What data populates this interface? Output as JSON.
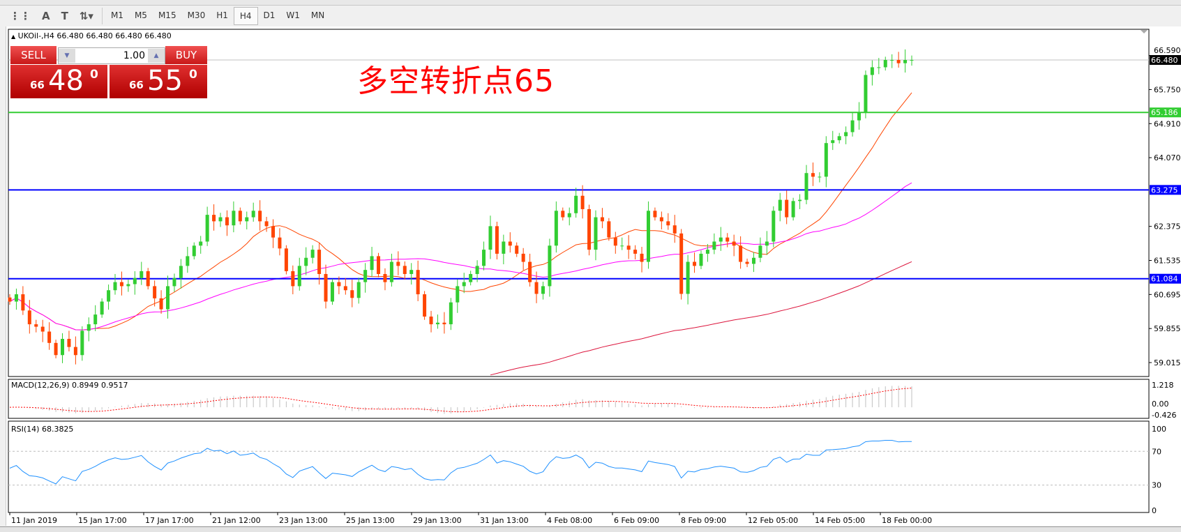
{
  "toolbar": {
    "tools": [
      {
        "name": "fibonacci-fan-icon",
        "glyph": "⋮⋮"
      },
      {
        "name": "text-icon",
        "glyph": "A"
      },
      {
        "name": "text-label-icon",
        "glyph": "T"
      },
      {
        "name": "arrows-icon",
        "glyph": "⇅▾"
      }
    ],
    "timeframes": [
      "M1",
      "M5",
      "M15",
      "M30",
      "H1",
      "H4",
      "D1",
      "W1",
      "MN"
    ],
    "selected_timeframe": "H4"
  },
  "header": {
    "symbol": "UKOil-,H4",
    "ohlc": "66.480 66.480 66.480 66.480"
  },
  "trade_panel": {
    "sell_label": "SELL",
    "buy_label": "BUY",
    "lot": "1.00",
    "sell_prefix": "66",
    "sell_main": "48",
    "sell_sup": "0",
    "buy_prefix": "66",
    "buy_main": "55",
    "buy_sup": "0"
  },
  "annotation": "多空转折点65",
  "colors": {
    "bull": "#32cd32",
    "bear": "#ff4500",
    "ma_fast": "#ff4500",
    "ma_mid": "#ff00ff",
    "ma_long": "#dc143c",
    "support": "#0000ff",
    "pivot": "#32cd32",
    "rsi": "#1e90ff",
    "macd_signal": "#ff0000",
    "macd_hist": "#c0c0c0"
  },
  "chart_data": {
    "type": "candlestick",
    "symbol": "UKOil-",
    "timeframe": "H4",
    "ylim": [
      58.8,
      66.6
    ],
    "y_ticks": [
      "66.590",
      "65.750",
      "64.910",
      "64.070",
      "62.375",
      "61.535",
      "60.695",
      "59.855",
      "59.015"
    ],
    "y_tick_values": [
      66.59,
      65.75,
      64.91,
      64.07,
      62.375,
      61.535,
      60.695,
      59.855,
      59.015
    ],
    "x_tick_labels": [
      "11 Jan 2019",
      "15 Jan 17:00",
      "17 Jan 17:00",
      "21 Jan 12:00",
      "23 Jan 13:00",
      "25 Jan 13:00",
      "29 Jan 13:00",
      "31 Jan 13:00",
      "4 Feb 08:00",
      "6 Feb 09:00",
      "8 Feb 09:00",
      "12 Feb 05:00",
      "14 Feb 05:00",
      "18 Feb 00:00"
    ],
    "closes": [
      60.52,
      60.7,
      60.3,
      59.96,
      59.9,
      59.78,
      59.5,
      59.2,
      59.6,
      59.4,
      59.2,
      59.8,
      59.96,
      60.2,
      60.52,
      60.8,
      61.0,
      60.9,
      60.95,
      61.1,
      61.27,
      60.9,
      60.6,
      60.33,
      60.9,
      61.1,
      61.4,
      61.64,
      61.9,
      62.0,
      62.66,
      62.5,
      62.6,
      62.4,
      62.76,
      62.5,
      62.6,
      62.76,
      62.5,
      62.38,
      62.1,
      61.83,
      61.27,
      60.9,
      61.4,
      61.6,
      61.8,
      61.2,
      60.52,
      61.0,
      60.9,
      60.8,
      60.61,
      61.0,
      61.3,
      61.64,
      61.2,
      61.0,
      61.5,
      61.4,
      61.2,
      61.3,
      60.7,
      60.15,
      59.96,
      60.0,
      59.96,
      60.5,
      60.9,
      61.0,
      61.2,
      61.4,
      61.8,
      62.38,
      61.7,
      62.0,
      61.9,
      61.7,
      61.5,
      61.0,
      60.71,
      60.9,
      61.9,
      62.76,
      62.6,
      62.7,
      63.13,
      62.8,
      61.8,
      62.6,
      62.5,
      62.1,
      61.9,
      61.9,
      61.8,
      61.7,
      61.5,
      62.76,
      62.6,
      62.5,
      62.4,
      62.2,
      60.71,
      61.5,
      61.4,
      61.7,
      61.8,
      62.0,
      62.1,
      62.0,
      61.9,
      61.5,
      61.45,
      61.6,
      61.9,
      62.0,
      62.76,
      63.03,
      62.6,
      63.0,
      63.03,
      63.69,
      63.6,
      63.6,
      64.43,
      64.5,
      64.6,
      64.7,
      64.99,
      65.18,
      66.11,
      66.3,
      66.3,
      66.48,
      66.48,
      66.4,
      66.48,
      66.48
    ],
    "levels": [
      {
        "price": 66.48,
        "label": "66.480",
        "kind": "bid"
      },
      {
        "price": 65.186,
        "label": "65.186",
        "kind": "pivot"
      },
      {
        "price": 63.275,
        "label": "63.275",
        "kind": "resistance"
      },
      {
        "price": 61.084,
        "label": "61.084",
        "kind": "support"
      }
    ],
    "macd": {
      "label": "MACD(12,26,9) 0.8949 0.9517",
      "y_ticks": [
        "1.218",
        "0.00",
        "-0.426"
      ],
      "ylim": [
        -0.426,
        1.218
      ]
    },
    "rsi": {
      "label": "RSI(14) 68.3825",
      "y_ticks": [
        "100",
        "70",
        "30",
        "0"
      ],
      "levels": [
        70,
        30
      ]
    }
  }
}
